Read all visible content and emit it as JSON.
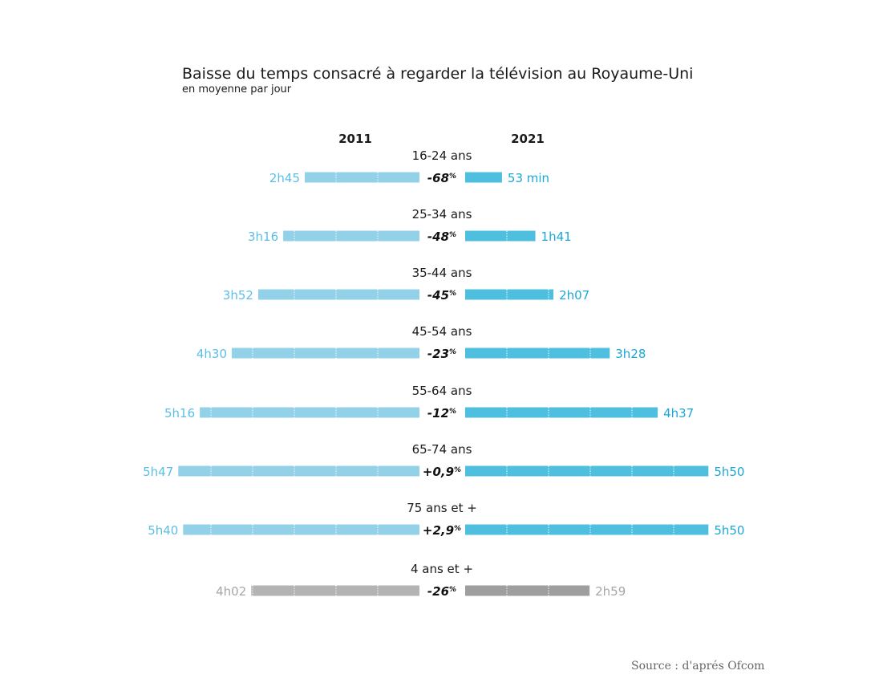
{
  "chart_data": {
    "type": "bar",
    "title": "Baisse du temps consacré à regarder la télévision au Royaume-Uni",
    "subtitle": "en moyenne par jour",
    "source": "Source : d'aprés Ofcom",
    "series_names": [
      "2011",
      "2021"
    ],
    "unit": "minutes per day",
    "categories": [
      "16-24 ans",
      "25-34 ans",
      "35-44 ans",
      "45-54 ans",
      "55-64 ans",
      "65-74 ans",
      "75 ans et +",
      "4 ans et +"
    ],
    "series": [
      {
        "name": "2011",
        "values": [
          165,
          196,
          232,
          270,
          316,
          347,
          340,
          242
        ],
        "labels": [
          "2h45",
          "3h16",
          "3h52",
          "4h30",
          "5h16",
          "5h47",
          "5h40",
          "4h02"
        ]
      },
      {
        "name": "2021",
        "values": [
          53,
          101,
          127,
          208,
          277,
          350,
          350,
          179
        ],
        "labels": [
          "53 min",
          "1h41",
          "2h07",
          "3h28",
          "4h37",
          "5h50",
          "5h50",
          "2h59"
        ]
      }
    ],
    "changes": [
      "-68",
      "-48",
      "-45",
      "-23",
      "-12",
      "+0,9",
      "+2,9",
      "-26"
    ],
    "percent_sign": "%",
    "colors": {
      "left": "#92d1e8",
      "right": "#4fbfe0",
      "left_text": "#5bbfe6",
      "right_text": "#1ba8d6",
      "total_left": "#b3b3b3",
      "total_right": "#9e9e9e",
      "total_text": "#a6a6a6"
    }
  }
}
